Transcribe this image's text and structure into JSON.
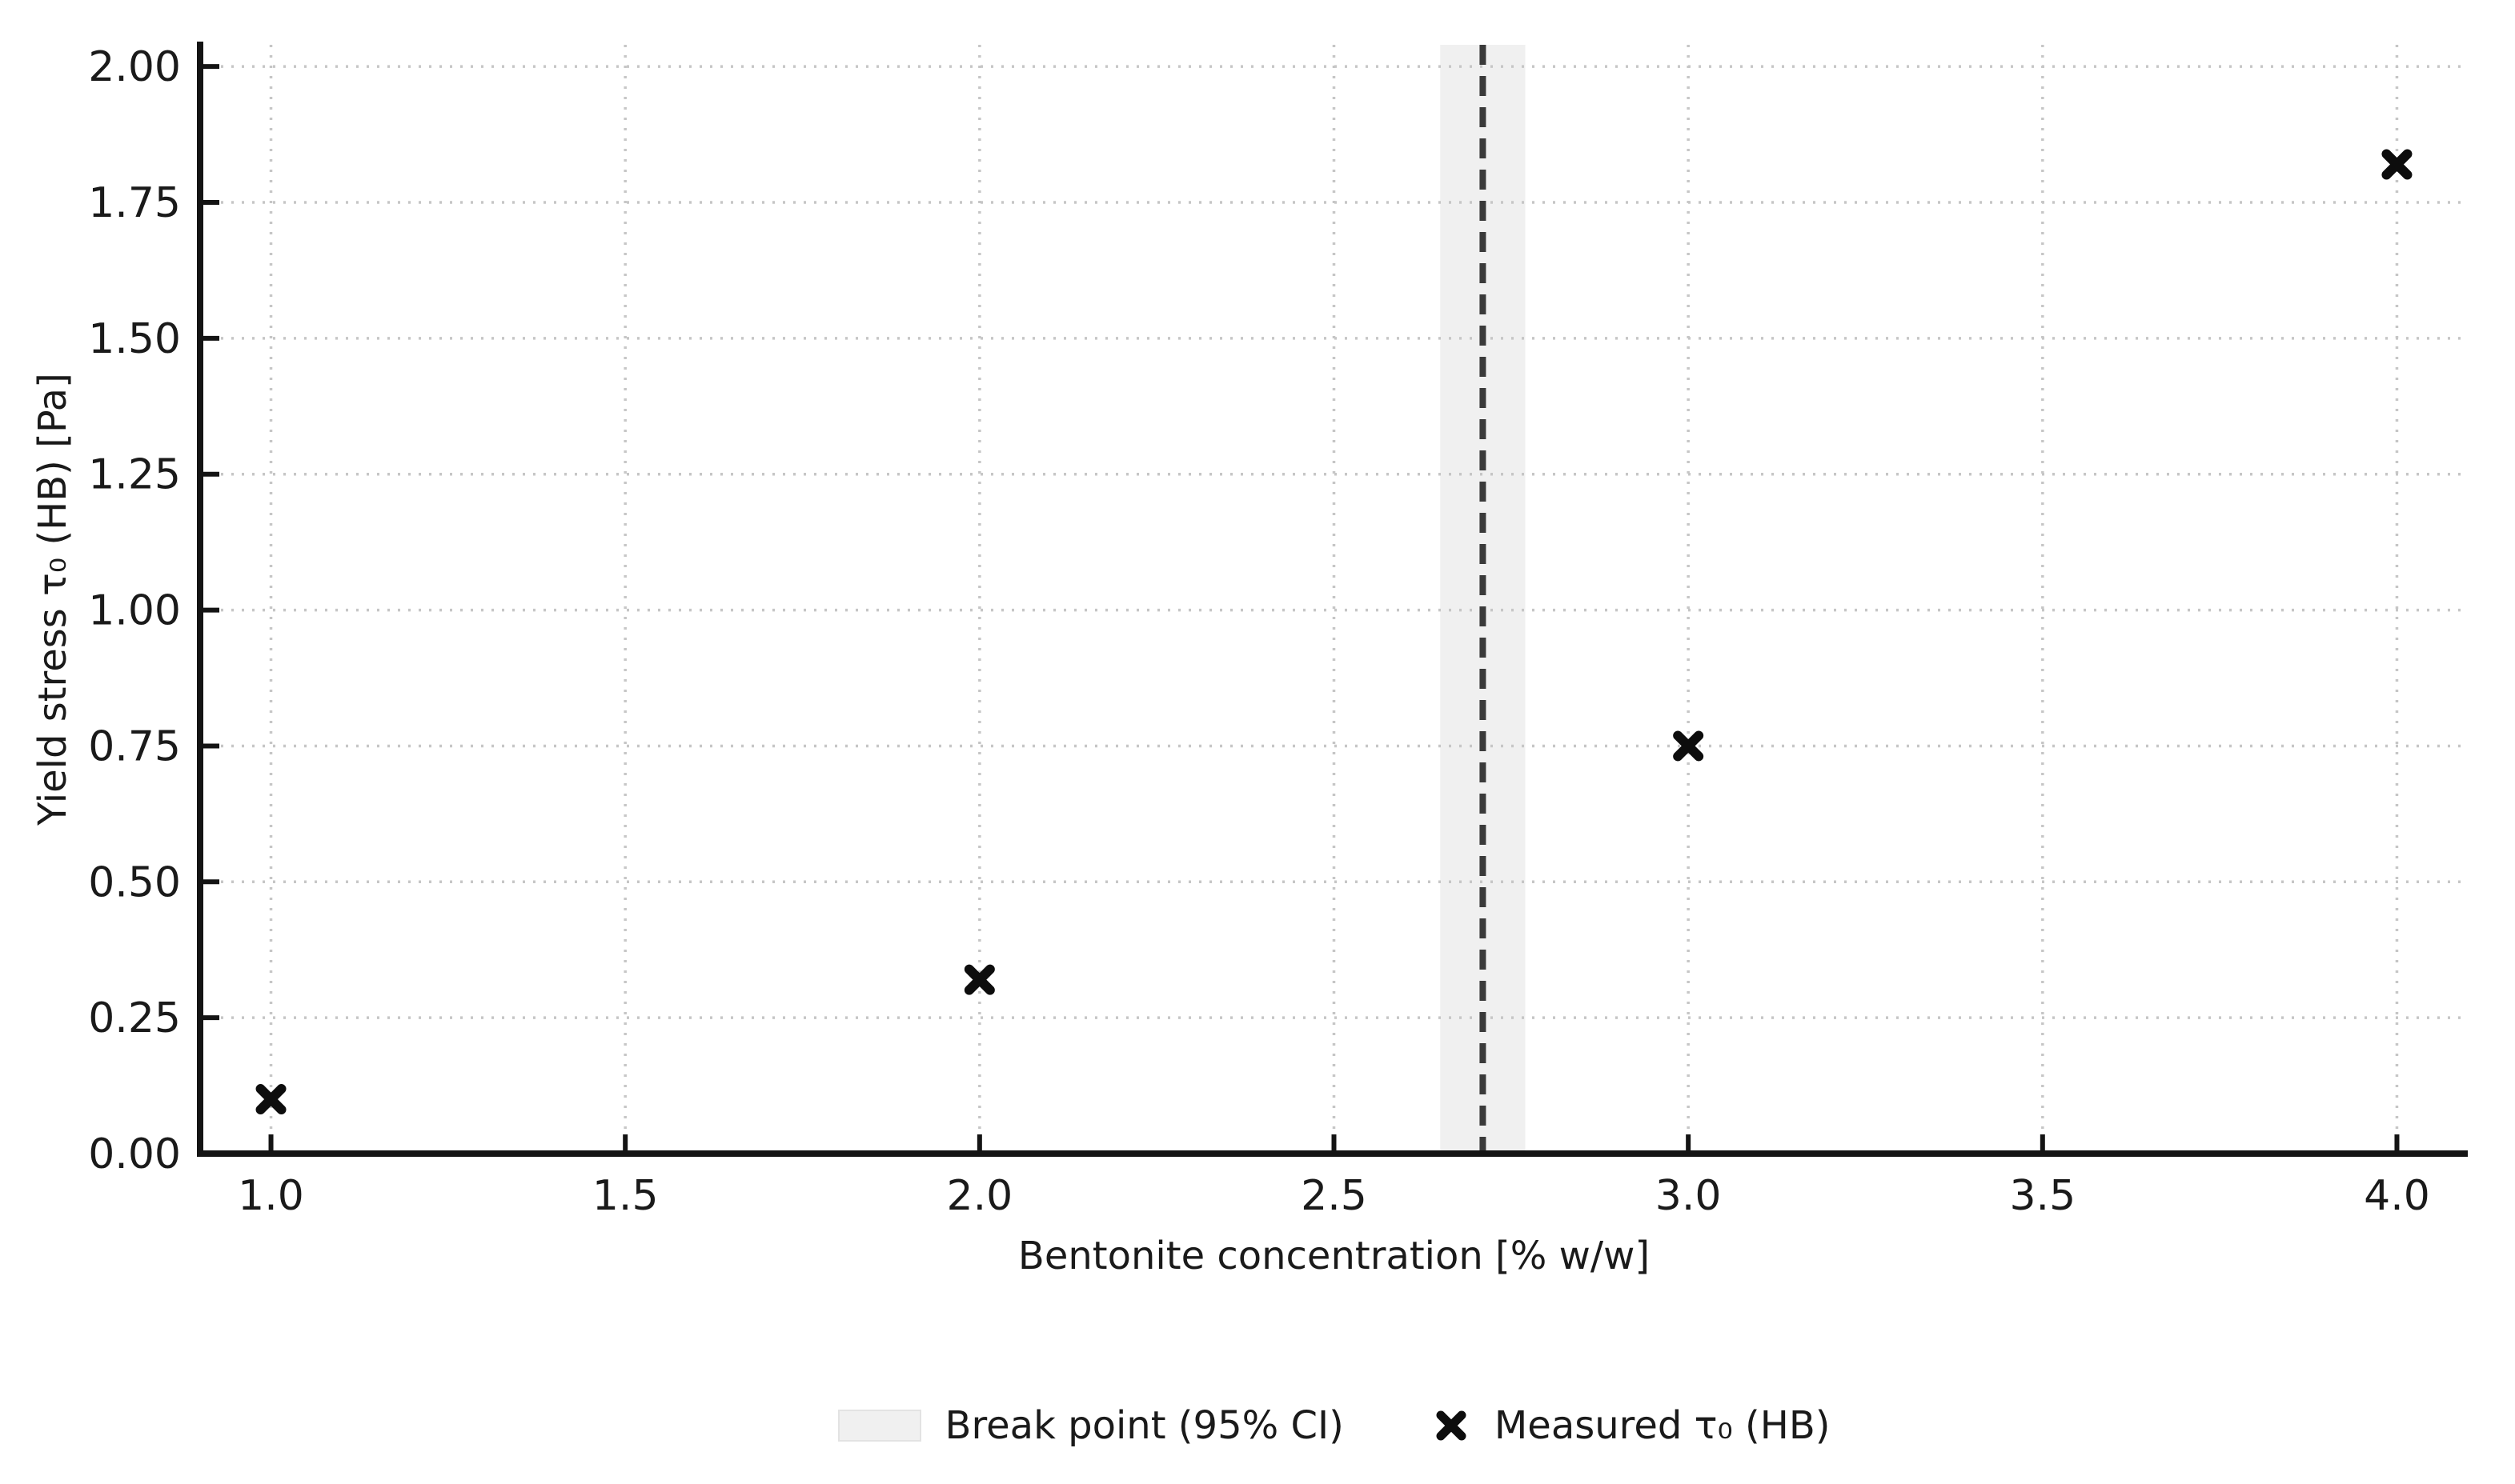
{
  "figure": {
    "background_color": "#ffffff",
    "text_color": "#1a1a1a",
    "spine_color": "#141414",
    "grid_color": "#c6c6c6"
  },
  "legend": {
    "position": "bottom-center",
    "items": [
      {
        "swatch": "ci-band-swatch",
        "label": "Break point (95% CI)",
        "swatch_color": "#f0f0f0",
        "swatch_edge_color": "#e3e3e3"
      },
      {
        "swatch": "x-marker",
        "label": "Measured τ₀ (HB)",
        "marker_color": "#0d0d0d"
      }
    ]
  },
  "chart_data": {
    "type": "scatter",
    "title": "",
    "xlabel": "Bentonite concentration [% w/w]",
    "ylabel": "Yield stress τ₀ (HB) [Pa]",
    "xlim": [
      0.9,
      4.1
    ],
    "ylim": [
      0,
      2.04
    ],
    "grid": "dotted, both axes",
    "legend_position": "below plot, centered",
    "x_ticks": [
      1.0,
      1.5,
      2.0,
      2.5,
      3.0,
      3.5,
      4.0
    ],
    "x_tick_labels": [
      "1.0",
      "1.5",
      "2.0",
      "2.5",
      "3.0",
      "3.5",
      "4.0"
    ],
    "y_ticks": [
      0.0,
      0.25,
      0.5,
      0.75,
      1.0,
      1.25,
      1.5,
      1.75,
      2.0
    ],
    "y_tick_labels": [
      "0.00",
      "0.25",
      "0.50",
      "0.75",
      "1.00",
      "1.25",
      "1.50",
      "1.75",
      "2.00"
    ],
    "series": [
      {
        "name": "Measured τ₀ (HB)",
        "marker": "X",
        "color": "#0d0d0d",
        "points": [
          {
            "x": 1.0,
            "y": 0.1
          },
          {
            "x": 2.0,
            "y": 0.32
          },
          {
            "x": 3.0,
            "y": 0.75
          },
          {
            "x": 4.0,
            "y": 1.82
          }
        ]
      }
    ],
    "break_point": {
      "name": "Break point (95% CI)",
      "x": 2.71,
      "ci": [
        2.65,
        2.77
      ],
      "line_style": "dashed",
      "line_color": "#3a3a3a",
      "band_color": "#f0f0f0"
    }
  }
}
